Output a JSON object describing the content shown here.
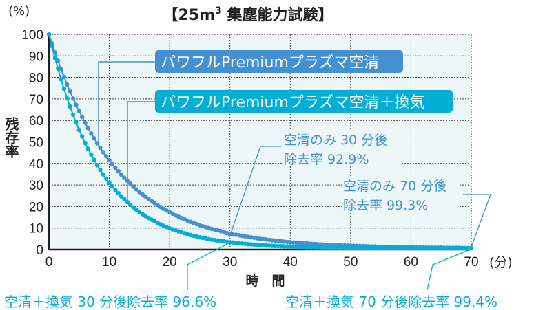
{
  "chart_data": {
    "type": "line",
    "title": "【25m³ 集塵能力試験】",
    "title_parts": {
      "pre": "【25m",
      "sup": "3",
      "post": " 集塵能力試験】"
    },
    "ylabel": "残存率",
    "yunit": "(%)",
    "xlabel": "時　間",
    "xunit": "(分)",
    "xlim": [
      0,
      70
    ],
    "ylim": [
      0,
      100
    ],
    "xticks": [
      0,
      10,
      20,
      30,
      40,
      50,
      60,
      70
    ],
    "yticks": [
      0,
      10,
      20,
      30,
      40,
      50,
      60,
      70,
      80,
      90,
      100
    ],
    "grid": true,
    "x": [
      0,
      1,
      2,
      3,
      4,
      5,
      6,
      7,
      8,
      9,
      10,
      11,
      12,
      13,
      14,
      15,
      16,
      17,
      18,
      19,
      20,
      21,
      22,
      23,
      24,
      25,
      26,
      27,
      28,
      29,
      30,
      31,
      32,
      33,
      34,
      35,
      36,
      37,
      38,
      39,
      40,
      41,
      42,
      43,
      44,
      45,
      46,
      47,
      48,
      49,
      50,
      51,
      52,
      53,
      54,
      55,
      56,
      57,
      58,
      59,
      60,
      61,
      62,
      63,
      64,
      65,
      66,
      67,
      68,
      69,
      70
    ],
    "series": [
      {
        "name": "パワフルPremiumプラズマ空清",
        "color": "#4490d0",
        "values": [
          100,
          91.6,
          83.8,
          76.7,
          70.2,
          64.3,
          58.9,
          53.9,
          49.4,
          45.2,
          41.5,
          38.0,
          34.8,
          31.9,
          29.2,
          26.7,
          24.6,
          22.5,
          20.7,
          18.9,
          17.4,
          15.9,
          14.6,
          13.4,
          12.3,
          11.3,
          10.4,
          9.6,
          8.9,
          8.2,
          7.1,
          6.9,
          6.4,
          5.9,
          5.5,
          5.0,
          4.7,
          4.3,
          4.0,
          3.7,
          3.4,
          3.2,
          3.0,
          2.8,
          2.6,
          2.4,
          2.2,
          2.1,
          2.0,
          1.9,
          1.8,
          1.7,
          1.6,
          1.5,
          1.4,
          1.3,
          1.3,
          1.2,
          1.2,
          1.1,
          1.1,
          1.0,
          1.0,
          0.9,
          0.9,
          0.9,
          0.8,
          0.8,
          0.8,
          0.7,
          0.7
        ]
      },
      {
        "name": "パワフルPremiumプラズマ空清＋換気",
        "color": "#00aed6",
        "values": [
          100,
          89.0,
          79.1,
          70.3,
          62.6,
          55.6,
          49.5,
          44.1,
          39.2,
          34.9,
          31.0,
          27.7,
          24.7,
          22.0,
          19.6,
          17.4,
          15.5,
          13.9,
          12.4,
          11.0,
          9.9,
          8.9,
          8.0,
          7.1,
          6.4,
          5.7,
          5.2,
          4.6,
          4.2,
          3.8,
          3.4,
          3.1,
          2.8,
          2.5,
          2.3,
          2.1,
          1.9,
          1.7,
          1.6,
          1.5,
          1.4,
          1.3,
          1.2,
          1.1,
          1.1,
          1.0,
          1.0,
          0.9,
          0.9,
          0.9,
          0.8,
          0.8,
          0.8,
          0.8,
          0.7,
          0.7,
          0.7,
          0.7,
          0.7,
          0.7,
          0.6,
          0.6,
          0.6,
          0.6,
          0.6,
          0.6,
          0.6,
          0.6,
          0.6,
          0.6,
          0.6
        ]
      }
    ],
    "annotations": [
      {
        "line1": "空清のみ 30 分後",
        "line2": "除去率 92.9%",
        "color": "#4490d0"
      },
      {
        "line1": "空清のみ 70 分後",
        "line2": "除去率 99.3%",
        "color": "#4490d0"
      },
      {
        "text": "空清＋換気 30 分後除去率 96.6%",
        "color": "#00aed6"
      },
      {
        "text": "空清＋換気 70 分後除去率 99.4%",
        "color": "#00aed6"
      }
    ]
  }
}
